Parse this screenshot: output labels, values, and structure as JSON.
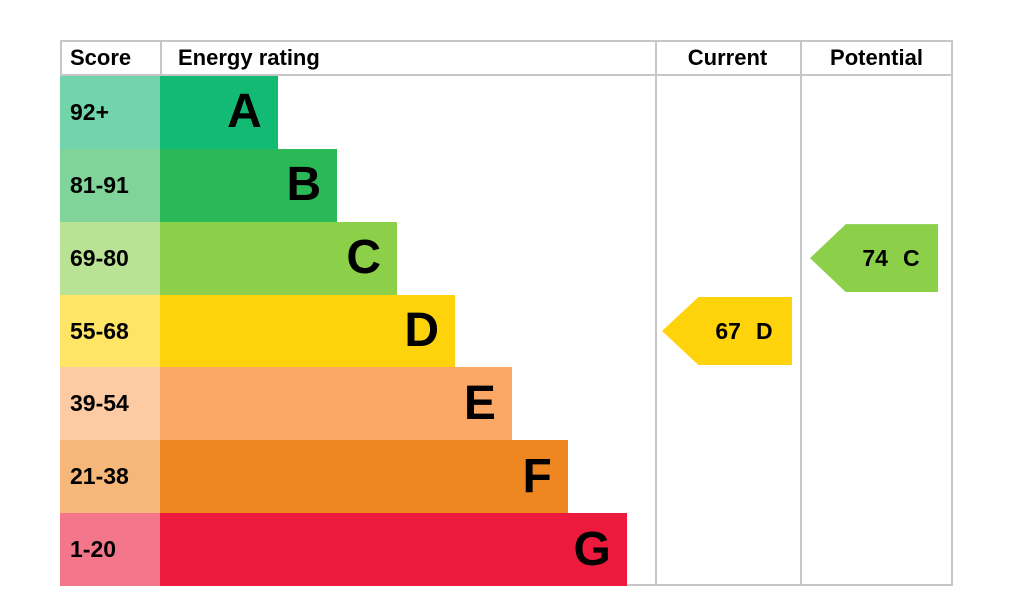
{
  "header": {
    "score": "Score",
    "energy_rating": "Energy rating",
    "current": "Current",
    "potential": "Potential"
  },
  "chart_data": {
    "type": "epc_energy_rating_bar",
    "title": "",
    "bands": [
      {
        "letter": "A",
        "score_range": "92+",
        "color": "#12ba74",
        "score_bg": "#71d4ab",
        "width_pct": 23.8
      },
      {
        "letter": "B",
        "score_range": "81-91",
        "color": "#2bb857",
        "score_bg": "#80d49a",
        "width_pct": 35.8
      },
      {
        "letter": "C",
        "score_range": "69-80",
        "color": "#8ccf49",
        "score_bg": "#bae294",
        "width_pct": 47.9
      },
      {
        "letter": "D",
        "score_range": "55-68",
        "color": "#ffd30c",
        "score_bg": "#ffe566",
        "width_pct": 59.6
      },
      {
        "letter": "E",
        "score_range": "39-54",
        "color": "#fba866",
        "score_bg": "#fdcba3",
        "width_pct": 71.1
      },
      {
        "letter": "F",
        "score_range": "21-38",
        "color": "#ee8722",
        "score_bg": "#f5b77a",
        "width_pct": 82.4
      },
      {
        "letter": "G",
        "score_range": "1-20",
        "color": "#ed1a3d",
        "score_bg": "#f4768b",
        "width_pct": 94.3
      }
    ],
    "current": {
      "value": "67",
      "band": "D",
      "band_index": 3,
      "color": "#ffd30c"
    },
    "potential": {
      "value": "74",
      "band": "C",
      "band_index": 2,
      "color": "#8ccf49"
    }
  }
}
